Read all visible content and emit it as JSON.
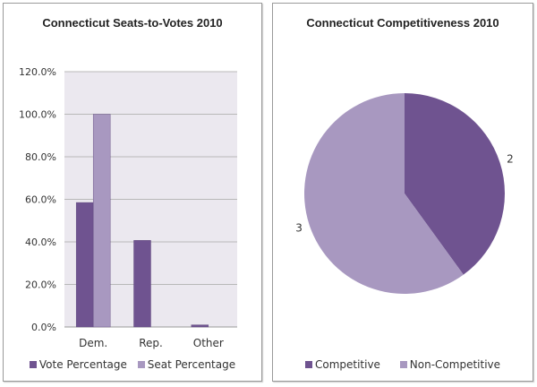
{
  "colors": {
    "dark_purple": "#6f5390",
    "light_purple": "#a898c0",
    "plot_bg": "#ebe8ef",
    "grid": "#b8b8b8"
  },
  "chart_data": [
    {
      "type": "bar",
      "title": "Connecticut Seats-to-Votes 2010",
      "categories": [
        "Dem.",
        "Rep.",
        "Other"
      ],
      "series": [
        {
          "name": "Vote Percentage",
          "values": [
            58.5,
            40.7,
            1.0
          ]
        },
        {
          "name": "Seat Percentage",
          "values": [
            100.0,
            0.0,
            0.0
          ]
        }
      ],
      "xlabel": "",
      "ylabel": "",
      "ylim": [
        0,
        120
      ],
      "yticks": [
        0,
        20,
        40,
        60,
        80,
        100,
        120
      ],
      "ytick_labels": [
        "0.0%",
        "20.0%",
        "40.0%",
        "60.0%",
        "80.0%",
        "100.0%",
        "120.0%"
      ],
      "grid": true,
      "legend": "bottom"
    },
    {
      "type": "pie",
      "title": "Connecticut Competitiveness 2010",
      "labels": [
        "Competitive",
        "Non-Competitive"
      ],
      "values": [
        2,
        3
      ],
      "data_labels": [
        "2",
        "3"
      ],
      "legend": "bottom"
    }
  ]
}
